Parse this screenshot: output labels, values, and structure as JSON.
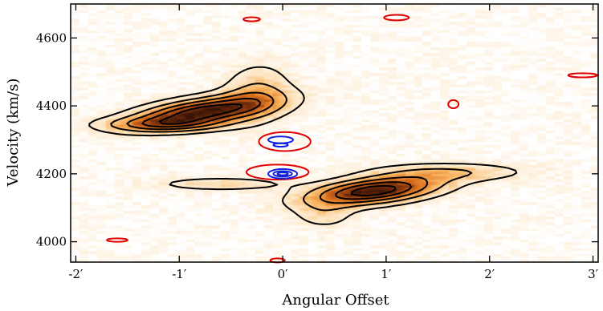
{
  "chart_data": {
    "type": "heatmap",
    "title": "",
    "xlabel": "Angular Offset",
    "ylabel": "Velocity (km/s)",
    "xlim": [
      -2.05,
      3.05
    ],
    "ylim": [
      3940,
      4700
    ],
    "x_ticks": [
      {
        "value": -2,
        "label": "-2′"
      },
      {
        "value": -1,
        "label": "-1′"
      },
      {
        "value": 0,
        "label": "0′"
      },
      {
        "value": 1,
        "label": "1′"
      },
      {
        "value": 2,
        "label": "2′"
      },
      {
        "value": 3,
        "label": "3′"
      }
    ],
    "y_ticks": [
      {
        "value": 4000,
        "label": "4000"
      },
      {
        "value": 4200,
        "label": "4200"
      },
      {
        "value": 4400,
        "label": "4400"
      },
      {
        "value": 4600,
        "label": "4600"
      }
    ],
    "colormap": [
      "#ffffff",
      "#fde6c4",
      "#f8b25e",
      "#d9701d",
      "#8e3a10",
      "#3a1405"
    ],
    "emission_components": [
      {
        "x0": -0.78,
        "y0": 4382,
        "sx": 0.45,
        "sy": 32,
        "rho": 0.55,
        "peak": 1.0
      },
      {
        "x0": -1.15,
        "y0": 4345,
        "sx": 0.4,
        "sy": 14,
        "rho": 0.0,
        "peak": 0.35
      },
      {
        "x0": -0.25,
        "y0": 4440,
        "sx": 0.22,
        "sy": 55,
        "rho": 0.1,
        "peak": 0.3
      },
      {
        "x0": 0.88,
        "y0": 4150,
        "sx": 0.42,
        "sy": 28,
        "rho": 0.45,
        "peak": 1.0
      },
      {
        "x0": 1.6,
        "y0": 4205,
        "sx": 0.5,
        "sy": 18,
        "rho": 0.0,
        "peak": 0.28
      },
      {
        "x0": -0.6,
        "y0": 4170,
        "sx": 0.45,
        "sy": 14,
        "rho": 0.0,
        "peak": 0.22
      },
      {
        "x0": 0.4,
        "y0": 4080,
        "sx": 0.2,
        "sy": 28,
        "rho": 0.0,
        "peak": 0.2
      }
    ],
    "contour_levels": [
      0.12,
      0.3,
      0.5,
      0.7,
      0.88
    ],
    "contour_colors": {
      "positive": "#000000",
      "negative": "#1020e0",
      "extra": "#e00000"
    },
    "negative_features": [
      {
        "x": -0.02,
        "y": 4300,
        "rx": 0.12,
        "ry": 10
      },
      {
        "x": -0.02,
        "y": 4285,
        "rx": 0.07,
        "ry": 5
      },
      {
        "x": 0.0,
        "y": 4200,
        "rx": 0.14,
        "ry": 14
      },
      {
        "x": 0.0,
        "y": 4200,
        "rx": 0.09,
        "ry": 8
      },
      {
        "x": 0.0,
        "y": 4200,
        "rx": 0.05,
        "ry": 4
      }
    ],
    "red_features": [
      {
        "x": 0.02,
        "y": 4295,
        "rx": 0.25,
        "ry": 28
      },
      {
        "x": -0.05,
        "y": 4205,
        "rx": 0.3,
        "ry": 22
      },
      {
        "x": 1.1,
        "y": 4660,
        "rx": 0.12,
        "ry": 8
      },
      {
        "x": -0.3,
        "y": 4655,
        "rx": 0.08,
        "ry": 6
      },
      {
        "x": 1.65,
        "y": 4405,
        "rx": 0.05,
        "ry": 12
      },
      {
        "x": 2.9,
        "y": 4490,
        "rx": 0.14,
        "ry": 6
      },
      {
        "x": -1.6,
        "y": 4005,
        "rx": 0.1,
        "ry": 5
      },
      {
        "x": -0.05,
        "y": 3945,
        "rx": 0.07,
        "ry": 6
      }
    ]
  }
}
